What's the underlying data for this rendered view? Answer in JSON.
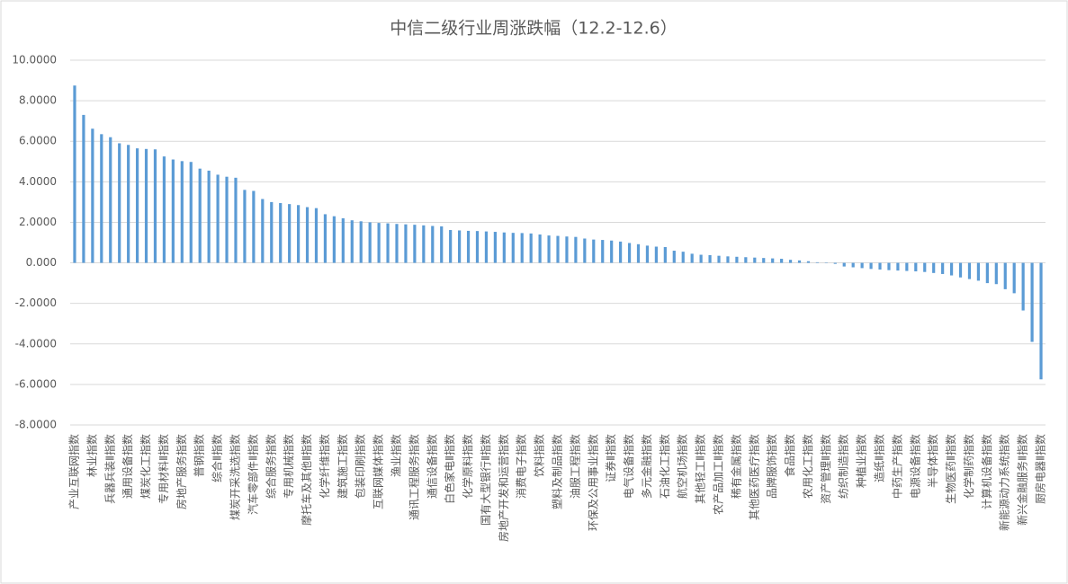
{
  "chart_data": {
    "type": "bar",
    "title": "中信二级行业周涨跌幅（12.2-12.6）",
    "categories": [
      "产业互联网指数",
      null,
      "林业指数",
      null,
      "兵器兵装Ⅱ指数",
      null,
      "通用设备指数",
      null,
      "煤炭化工指数",
      null,
      "专用材料Ⅱ指数",
      null,
      "房地产服务指数",
      null,
      "普钢指数",
      null,
      "综合Ⅱ指数",
      null,
      "煤炭开采洗选指数",
      null,
      "汽车零部件Ⅱ指数",
      null,
      "综合服务指数",
      null,
      "专用机械指数",
      null,
      "摩托车及其他Ⅱ指数",
      null,
      "化学纤维指数",
      null,
      "建筑施工指数",
      null,
      "包装印刷指数",
      null,
      "互联网媒体指数",
      null,
      "渔业指数",
      null,
      "通讯工程服务指数",
      null,
      "通信设备指数",
      null,
      "白色家电Ⅱ指数",
      null,
      "化学原料指数",
      null,
      "国有大型银行Ⅱ指数",
      null,
      "房地产开发和运营指数",
      null,
      "消费电子指数",
      null,
      "饮料指数",
      null,
      "塑料及制品指数",
      null,
      "油服工程指数",
      null,
      "环保及公用事业指数",
      null,
      "证券Ⅱ指数",
      null,
      "电气设备指数",
      null,
      "多元金融指数",
      null,
      "石油化工指数",
      null,
      "航空机场指数",
      null,
      "其他轻工Ⅱ指数",
      null,
      "农产品加工Ⅱ指数",
      null,
      "稀有金属指数",
      null,
      "其他医药医疗指数",
      null,
      "品牌服饰指数",
      null,
      "食品指数",
      null,
      "农用化工指数",
      null,
      "资产管理Ⅱ指数",
      null,
      "纺织制造指数",
      null,
      "种植业指数",
      null,
      "造纸Ⅱ指数",
      null,
      "中药生产指数",
      null,
      "电源设备指数",
      null,
      "半导体指数",
      null,
      "生物医药Ⅱ指数",
      null,
      "化学制药指数",
      null,
      "计算机设备指数",
      null,
      "新能源动力系统指数",
      null,
      "新兴金融服务Ⅱ指数",
      null,
      "厨房电器Ⅱ指数"
    ],
    "values": [
      8.75,
      7.3,
      6.62,
      6.35,
      6.2,
      5.9,
      5.82,
      5.65,
      5.62,
      5.6,
      5.25,
      5.1,
      5.02,
      4.98,
      4.65,
      4.55,
      4.35,
      4.25,
      4.2,
      3.6,
      3.55,
      3.15,
      3.0,
      2.95,
      2.9,
      2.85,
      2.75,
      2.7,
      2.4,
      2.3,
      2.2,
      2.1,
      2.05,
      2.0,
      1.97,
      1.95,
      1.92,
      1.9,
      1.88,
      1.85,
      1.82,
      1.8,
      1.62,
      1.6,
      1.58,
      1.57,
      1.55,
      1.53,
      1.5,
      1.48,
      1.47,
      1.45,
      1.4,
      1.35,
      1.33,
      1.3,
      1.28,
      1.2,
      1.15,
      1.13,
      1.1,
      1.05,
      0.98,
      0.92,
      0.85,
      0.8,
      0.78,
      0.6,
      0.55,
      0.45,
      0.4,
      0.38,
      0.35,
      0.32,
      0.3,
      0.28,
      0.26,
      0.24,
      0.22,
      0.2,
      0.15,
      0.12,
      0.08,
      0.03,
      -0.02,
      -0.05,
      -0.18,
      -0.22,
      -0.26,
      -0.3,
      -0.33,
      -0.36,
      -0.38,
      -0.4,
      -0.42,
      -0.45,
      -0.5,
      -0.55,
      -0.62,
      -0.72,
      -0.8,
      -0.88,
      -1.0,
      -1.05,
      -1.3,
      -1.5,
      -2.35,
      -3.9,
      -5.75
    ],
    "color": "#5b9bd5",
    "ylim": [
      -8,
      10
    ],
    "yticks": [
      {
        "value": -8,
        "label": "-8.0000"
      },
      {
        "value": -6,
        "label": "-6.0000"
      },
      {
        "value": -4,
        "label": "-4.0000"
      },
      {
        "value": -2,
        "label": "-2.0000"
      },
      {
        "value": 0,
        "label": "0.000"
      },
      {
        "value": 2,
        "label": "2.0000"
      },
      {
        "value": 4,
        "label": "4.0000"
      },
      {
        "value": 6,
        "label": "6.0000"
      },
      {
        "value": 8,
        "label": "8.0000"
      },
      {
        "value": 10,
        "label": "10.0000"
      }
    ],
    "grid": true
  }
}
